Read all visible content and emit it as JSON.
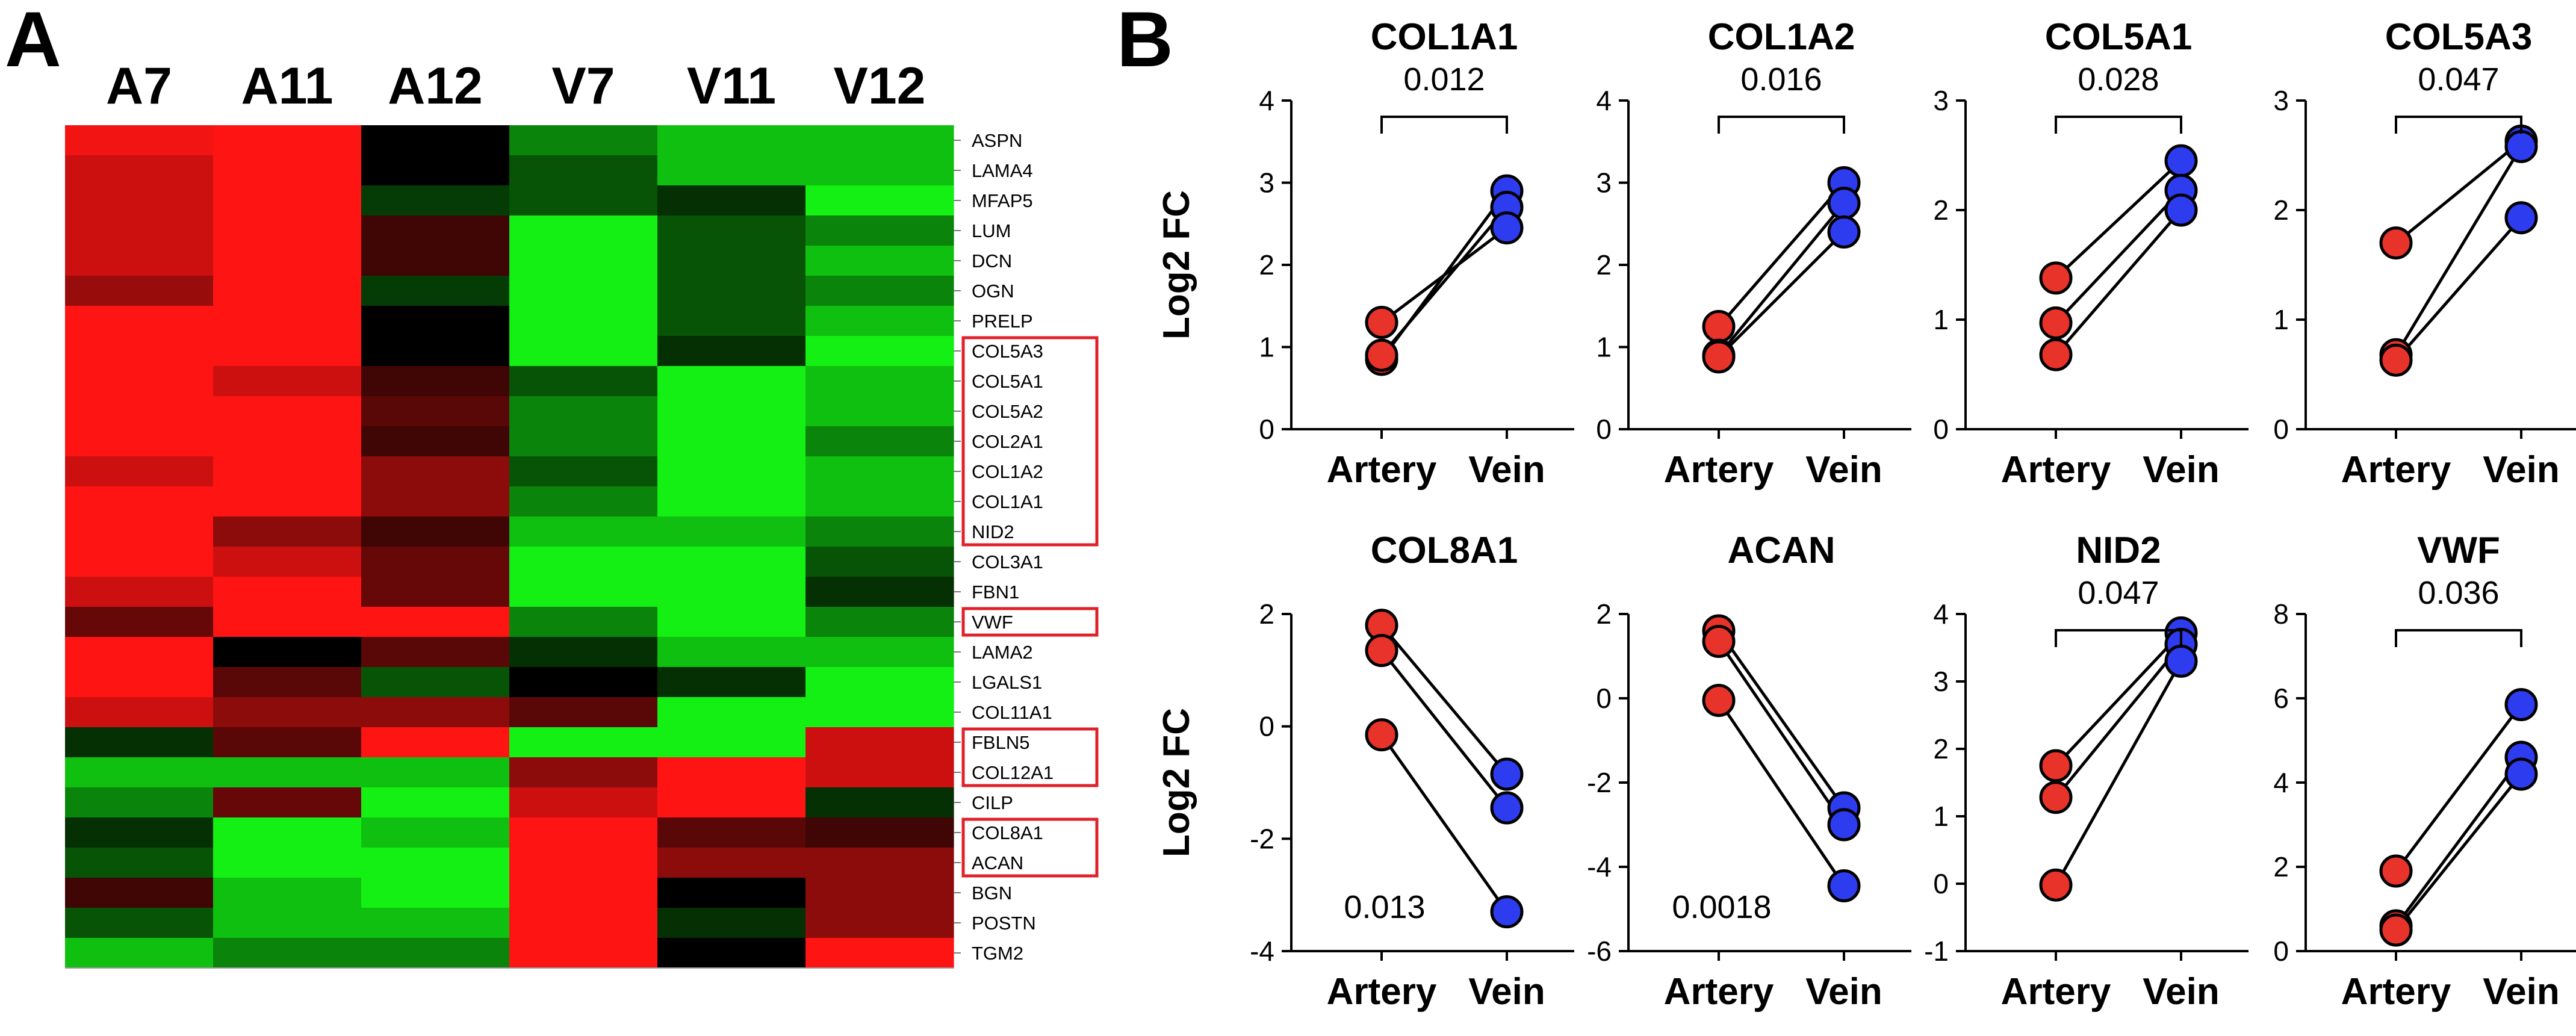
{
  "panel_labels": {
    "a": "A",
    "b": "B"
  },
  "colors": {
    "artery": "#e8332a",
    "vein": "#2e3cf0",
    "heat_high": "#ff1414",
    "heat_mid": "#000000",
    "heat_low": "#14f014",
    "highlight_box": "#e0202a"
  },
  "chart_data": [
    {
      "type": "heatmap",
      "title": "A",
      "columns": [
        "A7",
        "A11",
        "A12",
        "V7",
        "V11",
        "V12"
      ],
      "rows": [
        "ASPN",
        "LAMA4",
        "MFAP5",
        "LUM",
        "DCN",
        "OGN",
        "PRELP",
        "COL5A3",
        "COL5A1",
        "COL5A2",
        "COL2A1",
        "COL1A2",
        "COL1A1",
        "NID2",
        "COL3A1",
        "FBN1",
        "VWF",
        "LAMA2",
        "LGALS1",
        "COL11A1",
        "FBLN5",
        "COL12A1",
        "CILP",
        "COL8A1",
        "ACAN",
        "BGN",
        "POSTN",
        "TGM2"
      ],
      "value_range": [
        -1,
        1
      ],
      "values": [
        [
          0.95,
          1.0,
          0.0,
          -0.55,
          -0.8,
          -0.8
        ],
        [
          0.8,
          1.0,
          0.0,
          -0.35,
          -0.8,
          -0.8
        ],
        [
          0.8,
          1.0,
          -0.25,
          -0.35,
          -0.2,
          -1.0
        ],
        [
          0.8,
          1.0,
          0.25,
          -1.0,
          -0.35,
          -0.55
        ],
        [
          0.8,
          1.0,
          0.25,
          -1.0,
          -0.35,
          -0.8
        ],
        [
          0.6,
          1.0,
          -0.25,
          -1.0,
          -0.35,
          -0.55
        ],
        [
          1.0,
          1.0,
          0.0,
          -1.0,
          -0.35,
          -0.8
        ],
        [
          1.0,
          1.0,
          0.0,
          -1.0,
          -0.2,
          -1.0
        ],
        [
          1.0,
          0.8,
          0.25,
          -0.35,
          -1.0,
          -0.8
        ],
        [
          1.0,
          1.0,
          0.35,
          -0.55,
          -1.0,
          -0.8
        ],
        [
          1.0,
          1.0,
          0.25,
          -0.55,
          -1.0,
          -0.55
        ],
        [
          0.8,
          1.0,
          0.55,
          -0.35,
          -1.0,
          -0.8
        ],
        [
          1.0,
          1.0,
          0.55,
          -0.55,
          -1.0,
          -0.8
        ],
        [
          1.0,
          0.55,
          0.25,
          -0.8,
          -0.8,
          -0.55
        ],
        [
          1.0,
          0.8,
          0.4,
          -1.0,
          -1.0,
          -0.35
        ],
        [
          0.8,
          1.0,
          0.4,
          -1.0,
          -1.0,
          -0.2
        ],
        [
          0.4,
          1.0,
          1.0,
          -0.55,
          -1.0,
          -0.55
        ],
        [
          1.0,
          0.0,
          0.35,
          -0.2,
          -0.8,
          -0.8
        ],
        [
          1.0,
          0.35,
          -0.35,
          0.0,
          -0.2,
          -1.0
        ],
        [
          0.8,
          0.55,
          0.55,
          0.35,
          -1.0,
          -1.0
        ],
        [
          -0.2,
          0.35,
          1.0,
          -1.0,
          -1.0,
          0.8
        ],
        [
          -0.8,
          -0.8,
          -0.8,
          0.55,
          1.0,
          0.8
        ],
        [
          -0.55,
          0.4,
          -1.0,
          0.8,
          1.0,
          -0.2
        ],
        [
          -0.2,
          -1.0,
          -0.8,
          1.0,
          0.35,
          0.25
        ],
        [
          -0.35,
          -1.0,
          -1.0,
          1.0,
          0.55,
          0.55
        ],
        [
          0.25,
          -0.8,
          -1.0,
          1.0,
          0.0,
          0.55
        ],
        [
          -0.35,
          -0.8,
          -0.8,
          1.0,
          -0.2,
          0.55
        ],
        [
          -0.8,
          -0.55,
          -0.55,
          1.0,
          0.0,
          1.0
        ]
      ],
      "highlighted_groups": [
        [
          "COL5A3",
          "COL5A1",
          "COL5A2",
          "COL2A1",
          "COL1A2",
          "COL1A1",
          "NID2"
        ],
        [
          "VWF"
        ],
        [
          "FBLN5",
          "COL12A1"
        ],
        [
          "COL8A1",
          "ACAN"
        ]
      ]
    },
    {
      "type": "scatter",
      "title": "COL1A1",
      "ylabel": "Log2 FC",
      "categories": [
        "Artery",
        "Vein"
      ],
      "yticks": [
        0,
        1,
        2,
        3,
        4
      ],
      "ylim": [
        0,
        4
      ],
      "pairs": [
        [
          0.85,
          2.9
        ],
        [
          0.9,
          2.7
        ],
        [
          1.3,
          2.45
        ]
      ],
      "p_value": "0.012",
      "bracket": true
    },
    {
      "type": "scatter",
      "title": "COL1A2",
      "ylabel": "",
      "categories": [
        "Artery",
        "Vein"
      ],
      "yticks": [
        0,
        1,
        2,
        3,
        4
      ],
      "ylim": [
        0,
        4
      ],
      "pairs": [
        [
          1.25,
          3.0
        ],
        [
          0.9,
          2.75
        ],
        [
          0.88,
          2.4
        ]
      ],
      "p_value": "0.016",
      "bracket": true
    },
    {
      "type": "scatter",
      "title": "COL5A1",
      "ylabel": "",
      "categories": [
        "Artery",
        "Vein"
      ],
      "yticks": [
        0,
        1,
        2,
        3
      ],
      "ylim": [
        0,
        3
      ],
      "pairs": [
        [
          1.38,
          2.45
        ],
        [
          0.97,
          2.18
        ],
        [
          0.68,
          2.0
        ]
      ],
      "p_value": "0.028",
      "bracket": true
    },
    {
      "type": "scatter",
      "title": "COL5A3",
      "ylabel": "",
      "categories": [
        "Artery",
        "Vein"
      ],
      "yticks": [
        0,
        1,
        2,
        3
      ],
      "ylim": [
        0,
        3
      ],
      "pairs": [
        [
          1.7,
          2.63
        ],
        [
          0.68,
          2.58
        ],
        [
          0.63,
          1.93
        ]
      ],
      "p_value": "0.047",
      "bracket": true
    },
    {
      "type": "scatter",
      "title": "COL8A1",
      "ylabel": "Log2 FC",
      "categories": [
        "Artery",
        "Vein"
      ],
      "yticks": [
        -4,
        -2,
        0,
        2
      ],
      "ylim": [
        -4,
        2
      ],
      "pairs": [
        [
          1.8,
          -0.85
        ],
        [
          1.35,
          -1.45
        ],
        [
          -0.15,
          -3.3
        ]
      ],
      "p_value": "0.013",
      "bracket": false
    },
    {
      "type": "scatter",
      "title": "ACAN",
      "ylabel": "",
      "categories": [
        "Artery",
        "Vein"
      ],
      "yticks": [
        -6,
        -4,
        -2,
        0,
        2
      ],
      "ylim": [
        -6,
        2
      ],
      "pairs": [
        [
          1.6,
          -2.6
        ],
        [
          1.35,
          -3.0
        ],
        [
          -0.05,
          -4.45
        ]
      ],
      "p_value": "0.0018",
      "bracket": false
    },
    {
      "type": "scatter",
      "title": "NID2",
      "ylabel": "",
      "categories": [
        "Artery",
        "Vein"
      ],
      "yticks": [
        -1,
        0,
        1,
        2,
        3,
        4
      ],
      "ylim": [
        -1,
        4
      ],
      "pairs": [
        [
          1.75,
          3.72
        ],
        [
          1.28,
          3.55
        ],
        [
          -0.02,
          3.3
        ]
      ],
      "p_value": "0.047",
      "bracket": true
    },
    {
      "type": "scatter",
      "title": "VWF",
      "ylabel": "",
      "categories": [
        "Artery",
        "Vein"
      ],
      "yticks": [
        0,
        2,
        4,
        6,
        8
      ],
      "ylim": [
        0,
        8
      ],
      "pairs": [
        [
          1.9,
          5.85
        ],
        [
          0.6,
          4.6
        ],
        [
          0.5,
          4.2
        ]
      ],
      "p_value": "0.036",
      "bracket": true
    }
  ]
}
